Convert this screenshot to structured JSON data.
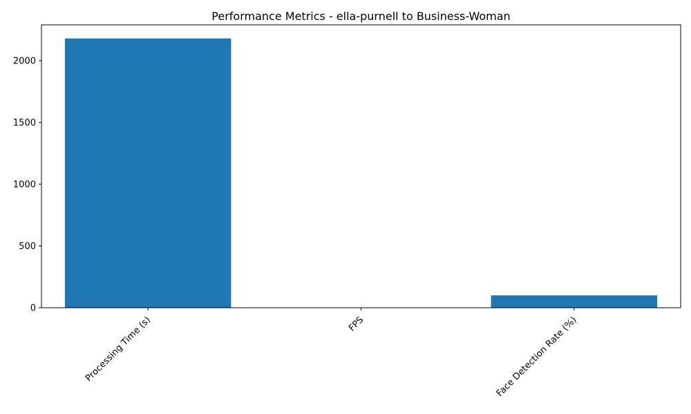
{
  "chart_data": {
    "type": "bar",
    "title": "Performance Metrics - ella-purnell to Business-Woman",
    "xlabel": "",
    "ylabel": "",
    "categories": [
      "Processing Time (s)",
      "FPS",
      "Face Detection Rate (%)"
    ],
    "values": [
      2180,
      1.5,
      100
    ],
    "ylim": [
      0,
      2290
    ],
    "yticks": [
      0,
      500,
      1000,
      1500,
      2000
    ],
    "ytick_labels": [
      "0",
      "500",
      "1000",
      "1500",
      "2000"
    ],
    "xtick_rotation_deg": 45,
    "bar_color": "#1f77b4",
    "grid": false,
    "legend": "none"
  }
}
